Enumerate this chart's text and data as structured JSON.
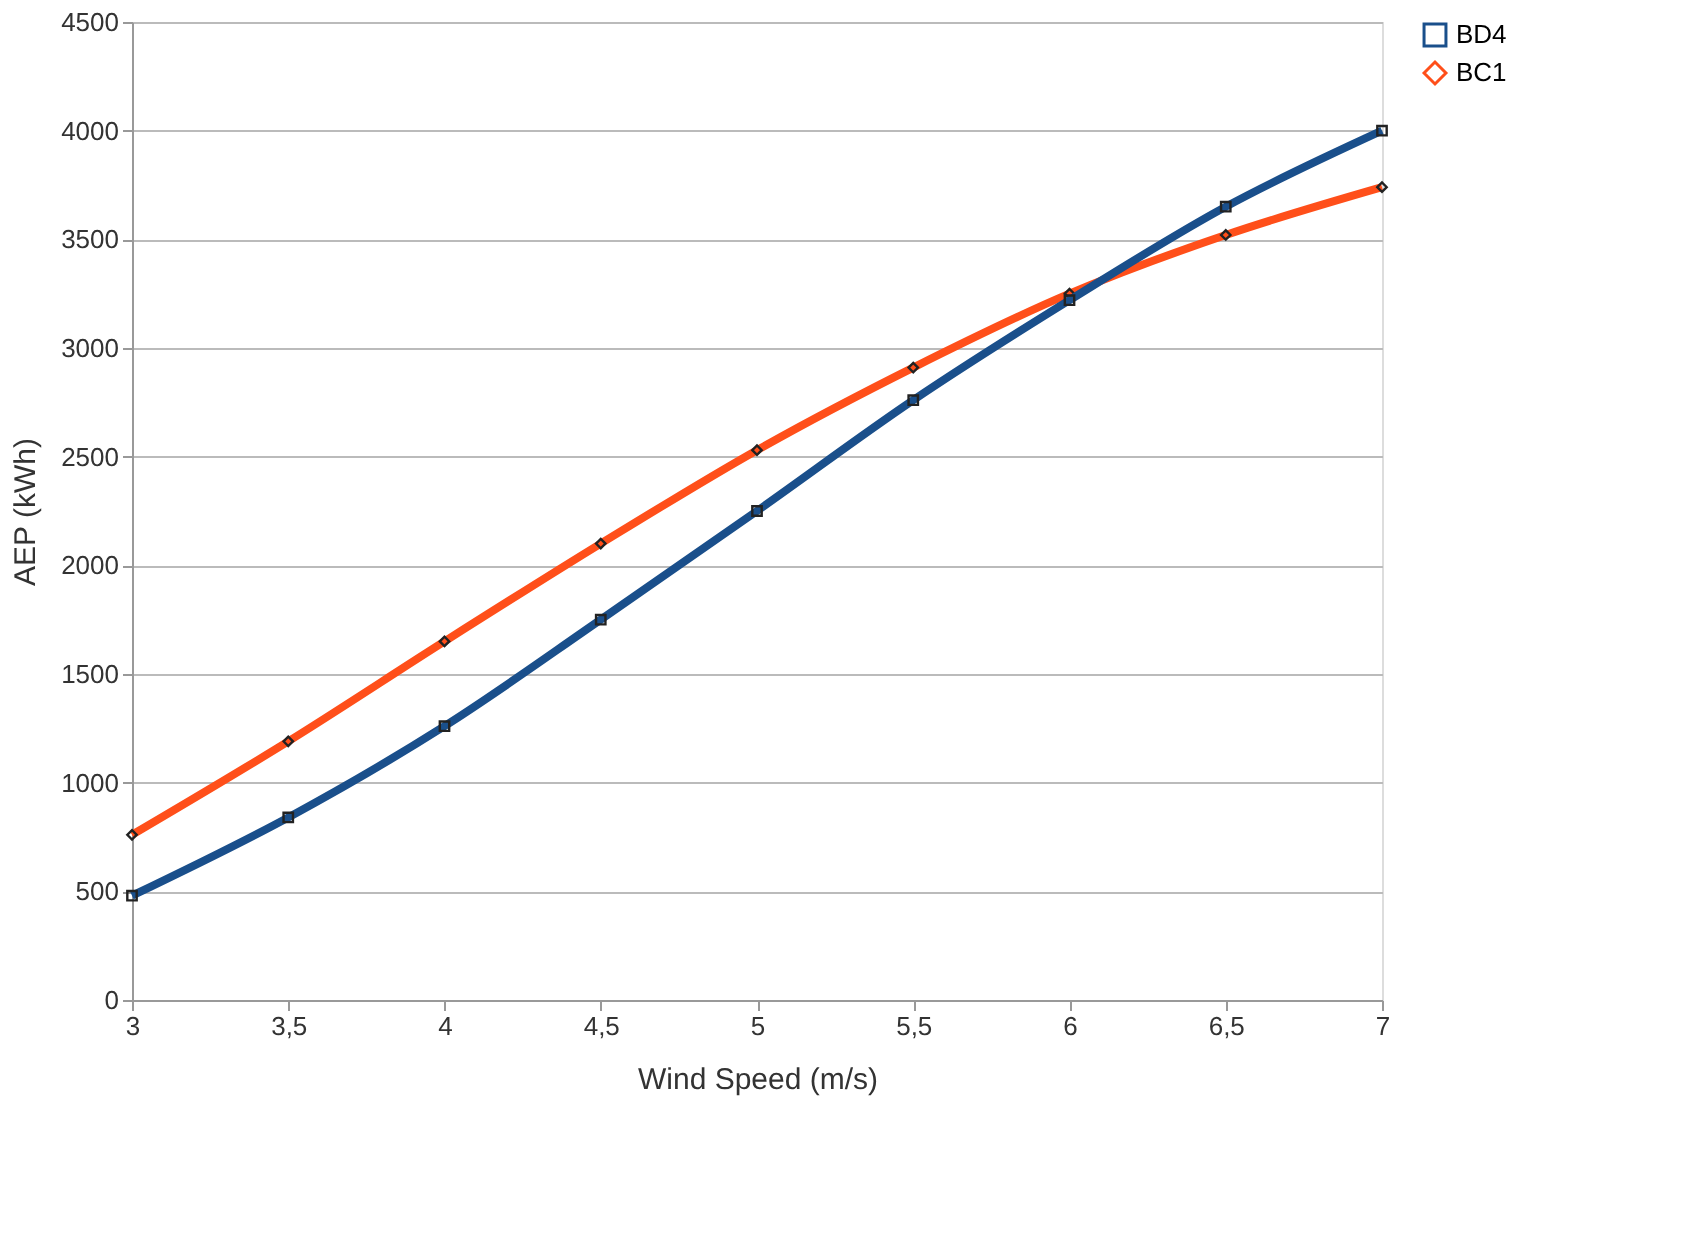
{
  "chart_data": {
    "type": "line",
    "xlabel": "Wind Speed (m/s)",
    "ylabel": "AEP (kWh)",
    "x": [
      3,
      3.5,
      4,
      4.5,
      5,
      5.5,
      6,
      6.5,
      7
    ],
    "series": [
      {
        "name": "BD4",
        "color": "#1a4f8b",
        "marker": "square",
        "values": [
          480,
          840,
          1260,
          1750,
          2250,
          2760,
          3220,
          3650,
          4000
        ]
      },
      {
        "name": "BC1",
        "color": "#ff4f1a",
        "marker": "diamond",
        "values": [
          760,
          1190,
          1650,
          2100,
          2530,
          2910,
          3250,
          3520,
          3740
        ]
      }
    ],
    "xlim": [
      3,
      7
    ],
    "xticks": [
      3,
      {
        "value": 3.5,
        "label": "3,5"
      },
      4,
      {
        "value": 4.5,
        "label": "4,5"
      },
      5,
      {
        "value": 5.5,
        "label": "5,5"
      },
      6,
      {
        "value": 6.5,
        "label": "6,5"
      },
      7
    ],
    "ylim": [
      0,
      4500
    ],
    "yticks": [
      0,
      500,
      1000,
      1500,
      2000,
      2500,
      3000,
      3500,
      4000,
      4500
    ],
    "grid": "y",
    "legend": "right",
    "line_style": "solid"
  }
}
